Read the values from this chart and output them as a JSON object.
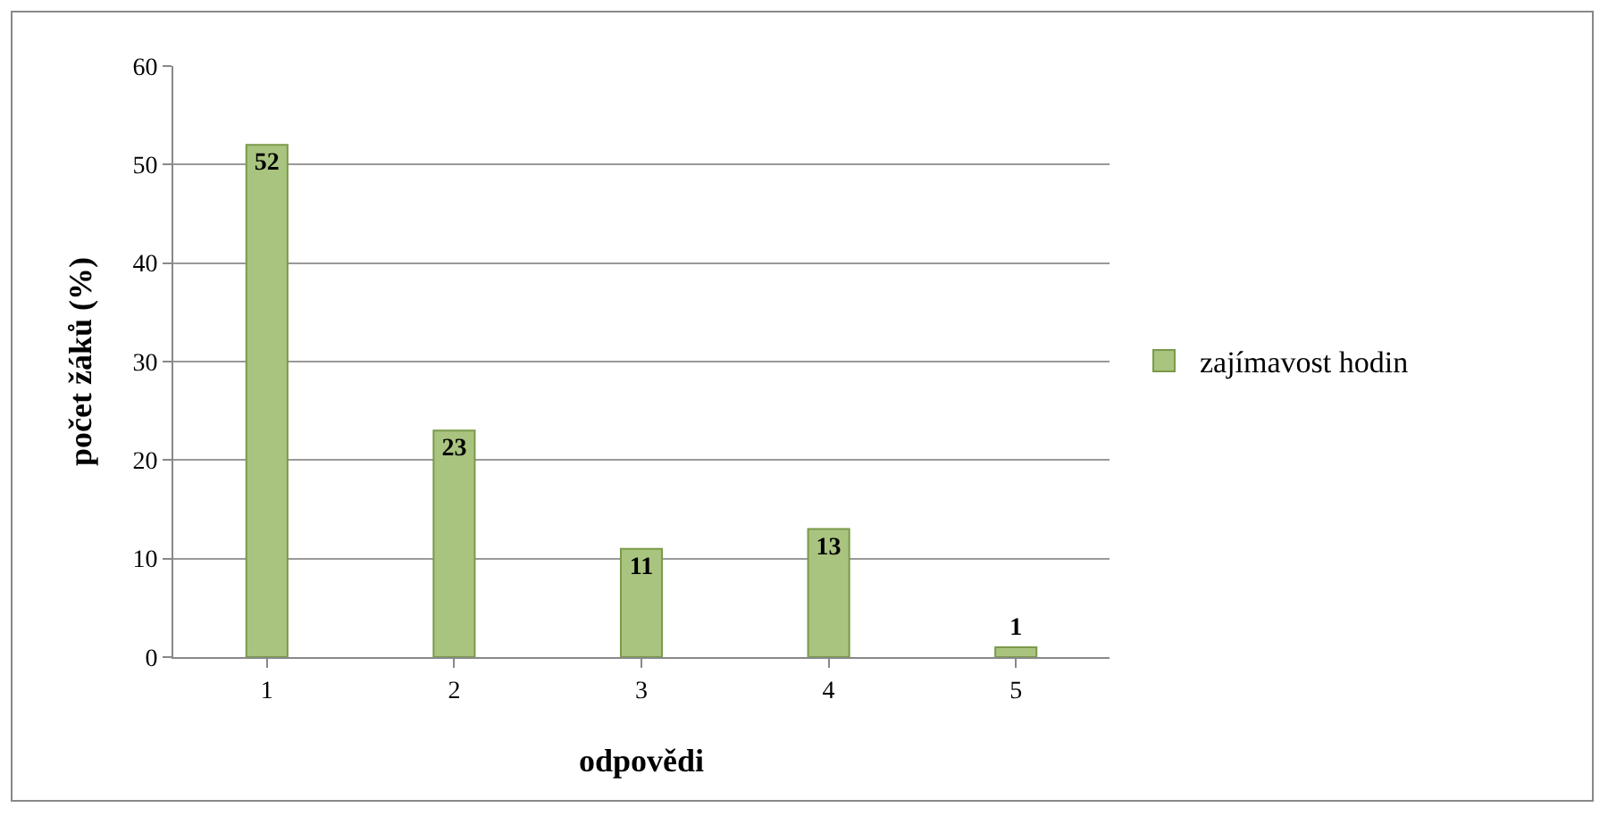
{
  "chart_data": {
    "type": "bar",
    "xlabel": "odpovědi",
    "ylabel": "počet žáků (%)",
    "categories": [
      "1",
      "2",
      "3",
      "4",
      "5"
    ],
    "series": [
      {
        "name": "zajímavost hodin",
        "color": "#a9c47f",
        "values": [
          52,
          23,
          11,
          13,
          1
        ]
      }
    ],
    "ylim": [
      0,
      60
    ],
    "yticks": [
      0,
      10,
      20,
      30,
      40,
      50,
      60
    ],
    "grid": "y",
    "legend": "right",
    "data_labels": true
  }
}
